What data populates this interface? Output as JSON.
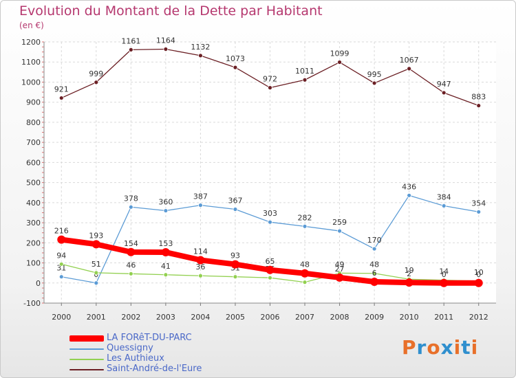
{
  "chart_data": {
    "type": "line",
    "title": "Evolution du Montant de la Dette par Habitant",
    "subtitle": "(en €)",
    "categories": [
      "2000",
      "2001",
      "2002",
      "2003",
      "2004",
      "2005",
      "2006",
      "2007",
      "2008",
      "2009",
      "2010",
      "2011",
      "2012"
    ],
    "ylim": [
      -100,
      1200
    ],
    "yticks": [
      -100,
      0,
      100,
      200,
      300,
      400,
      500,
      600,
      700,
      800,
      900,
      1000,
      1100,
      1200
    ],
    "grid": true,
    "series": [
      {
        "name": "Saint-André-de-l'Eure",
        "color": "#6b1f24",
        "values": [
          921,
          999,
          1161,
          1164,
          1132,
          1073,
          972,
          1011,
          1099,
          995,
          1067,
          947,
          883
        ]
      },
      {
        "name": "Quessigny",
        "color": "#5b9bd5",
        "values": [
          31,
          0,
          378,
          360,
          387,
          367,
          303,
          282,
          259,
          170,
          436,
          384,
          354
        ]
      },
      {
        "name": "Les Authieux",
        "color": "#92d050",
        "values": [
          94,
          51,
          46,
          41,
          36,
          31,
          26,
          4,
          49,
          48,
          19,
          14,
          10
        ]
      },
      {
        "name": "LA FORêT-DU-PARC",
        "color": "#ff0000",
        "values": [
          216,
          193,
          154,
          153,
          114,
          93,
          65,
          48,
          27,
          6,
          2,
          0,
          0
        ]
      }
    ],
    "legend_position": "bottom-left"
  },
  "legend": [
    {
      "label": "LA FORêT-DU-PARC",
      "color": "#ff0000"
    },
    {
      "label": "Quessigny",
      "color": "#5b9bd5"
    },
    {
      "label": "Les Authieux",
      "color": "#92d050"
    },
    {
      "label": "Saint-André-de-l'Eure",
      "color": "#6b1f24"
    }
  ],
  "logo": {
    "text": "Proxiti",
    "colors": [
      "#e8702a",
      "#2f8fce",
      "#e8702a",
      "#2f8fce",
      "#e8702a",
      "#2f8fce",
      "#e8702a"
    ]
  }
}
